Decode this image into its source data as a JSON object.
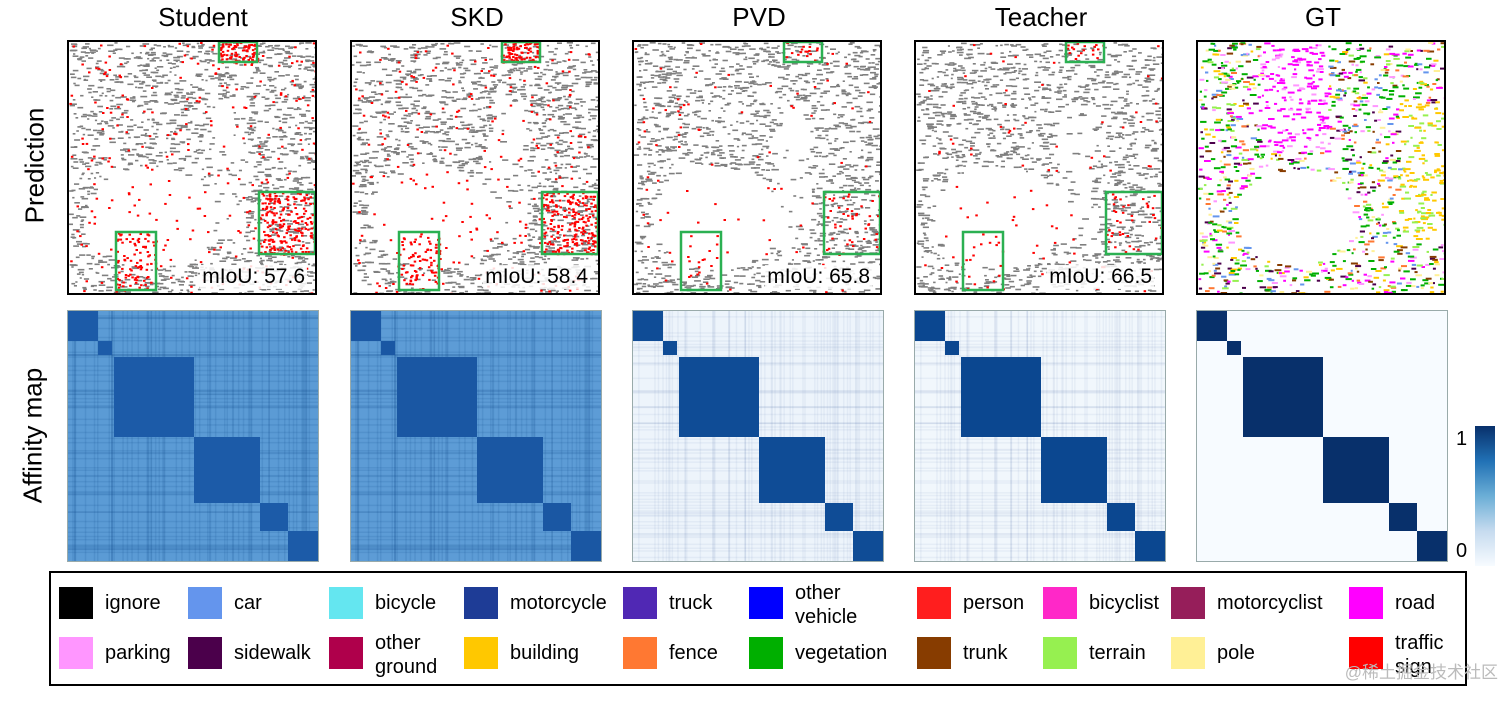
{
  "columns": [
    "Student",
    "SKD",
    "PVD",
    "Teacher",
    "GT"
  ],
  "rows": [
    "Prediction",
    "Affinity map"
  ],
  "miou": [
    "mIoU: 57.6",
    "mIoU: 58.4",
    "mIoU: 65.8",
    "mIoU: 66.5"
  ],
  "colorbar": {
    "max": "1",
    "min": "0"
  },
  "legend": [
    {
      "label": "ignore",
      "color": "#000000"
    },
    {
      "label": "car",
      "color": "#6495ed"
    },
    {
      "label": "bicycle",
      "color": "#64e6f0"
    },
    {
      "label": "motorcycle",
      "color": "#1e3c96"
    },
    {
      "label": "truck",
      "color": "#5028b4"
    },
    {
      "label": "other vehicle",
      "color": "#0000ff"
    },
    {
      "label": "person",
      "color": "#ff1e1e"
    },
    {
      "label": "bicyclist",
      "color": "#ff28c8"
    },
    {
      "label": "motorcyclist",
      "color": "#961e5a"
    },
    {
      "label": "road",
      "color": "#ff00ff"
    },
    {
      "label": "parking",
      "color": "#ff96ff"
    },
    {
      "label": "sidewalk",
      "color": "#4b004b"
    },
    {
      "label": "other ground",
      "color": "#af004b"
    },
    {
      "label": "building",
      "color": "#ffc800"
    },
    {
      "label": "fence",
      "color": "#ff7832"
    },
    {
      "label": "vegetation",
      "color": "#00af00"
    },
    {
      "label": "trunk",
      "color": "#873c00"
    },
    {
      "label": "terrain",
      "color": "#96f050"
    },
    {
      "label": "pole",
      "color": "#fff096"
    },
    {
      "label": "traffic sign",
      "color": "#ff0000"
    }
  ],
  "watermark": "@稀土掘金技术社区"
}
